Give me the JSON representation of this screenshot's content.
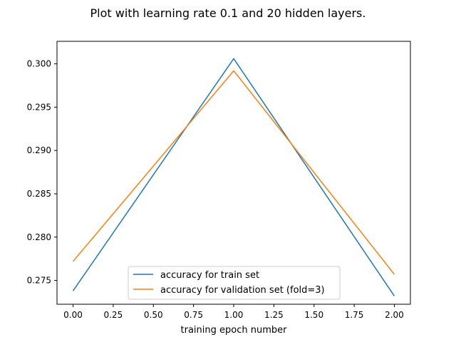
{
  "chart_data": {
    "type": "line",
    "title": "Plot with learning rate 0.1 and 20 hidden layers.",
    "xlabel": "training epoch number",
    "ylabel": "",
    "x": [
      0,
      1,
      2
    ],
    "xlim": [
      -0.1,
      2.1
    ],
    "ylim": [
      0.27225,
      0.3026
    ],
    "xticks": [
      0.0,
      0.25,
      0.5,
      0.75,
      1.0,
      1.25,
      1.5,
      1.75,
      2.0
    ],
    "xtick_labels": [
      "0.00",
      "0.25",
      "0.50",
      "0.75",
      "1.00",
      "1.25",
      "1.50",
      "1.75",
      "2.00"
    ],
    "yticks": [
      0.275,
      0.28,
      0.285,
      0.29,
      0.295,
      0.3
    ],
    "ytick_labels": [
      "0.275",
      "0.280",
      "0.285",
      "0.290",
      "0.295",
      "0.300"
    ],
    "grid": false,
    "legend_position": "lower center",
    "series": [
      {
        "name": "accuracy for train set",
        "color": "#1f77b4",
        "values": [
          0.2738,
          0.3006,
          0.2732
        ]
      },
      {
        "name": "accuracy for validation set (fold=3)",
        "color": "#ff7f0e",
        "values": [
          0.2772,
          0.2992,
          0.2757
        ]
      }
    ]
  }
}
